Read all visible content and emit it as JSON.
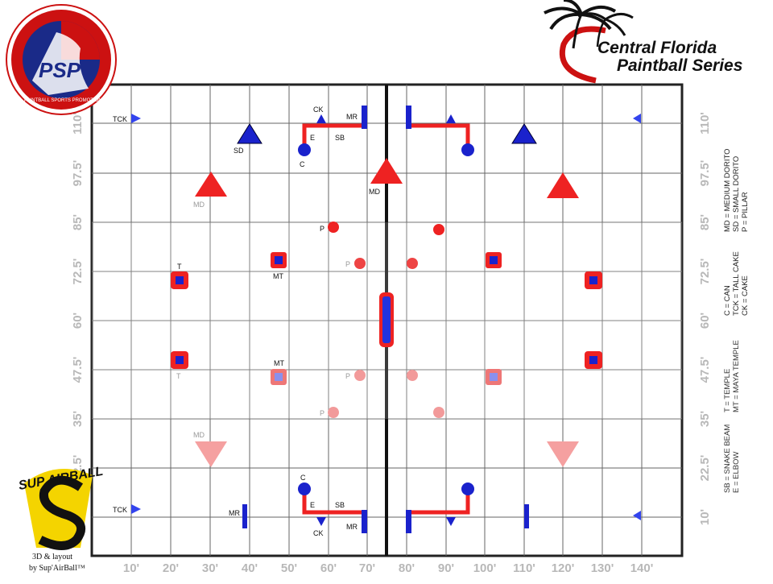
{
  "branding": {
    "psp_logo_text": "PSP",
    "psp_logo_ring_text": "PAINTBALL SPORTS PROMOTIONS",
    "cfps_line1": "Central Florida",
    "cfps_line2": "Paintball Series",
    "sup_logo_text": "SUP AIRBALL",
    "sup_caption_line1": "3D & layout",
    "sup_caption_line2": "by Sup'AirBall™"
  },
  "axes": {
    "x_labels": [
      "10'",
      "20'",
      "30'",
      "40'",
      "50'",
      "60'",
      "70'",
      "80'",
      "90'",
      "100'",
      "110'",
      "120'",
      "130'",
      "140'"
    ],
    "y_labels": [
      "10'",
      "22.5'",
      "35'",
      "47.5'",
      "60'",
      "72.5'",
      "85'",
      "97.5'",
      "110'"
    ]
  },
  "legend": {
    "group1": [
      "MD = MEDIUM DORITO",
      "SD = SMALL DORITO",
      "P = PILLAR"
    ],
    "group2": [
      "C = CAN",
      "TCK = TALL CAKE",
      "CK = CAKE"
    ],
    "group3": [
      "T = TEMPLE",
      "MT = MAYA TEMPLE"
    ],
    "group4": [
      "SB = SNAKE BEAM",
      "E = ELBOW"
    ]
  },
  "labels": {
    "tck": "TCK",
    "ck": "CK",
    "mr": "MR",
    "sd": "SD",
    "e": "E",
    "sb": "SB",
    "c": "C",
    "md": "MD",
    "p": "P",
    "t": "T",
    "mt": "MT"
  },
  "colors": {
    "red": "#ee2222",
    "blue": "#1a22cc",
    "grid": "#555555",
    "axis_label": "#b8b8b8"
  }
}
